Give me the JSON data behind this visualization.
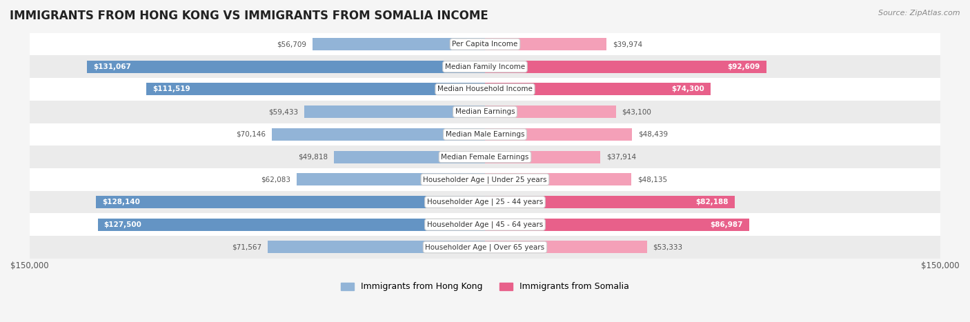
{
  "title": "IMMIGRANTS FROM HONG KONG VS IMMIGRANTS FROM SOMALIA INCOME",
  "source": "Source: ZipAtlas.com",
  "categories": [
    "Per Capita Income",
    "Median Family Income",
    "Median Household Income",
    "Median Earnings",
    "Median Male Earnings",
    "Median Female Earnings",
    "Householder Age | Under 25 years",
    "Householder Age | 25 - 44 years",
    "Householder Age | 45 - 64 years",
    "Householder Age | Over 65 years"
  ],
  "hong_kong_values": [
    56709,
    131067,
    111519,
    59433,
    70146,
    49818,
    62083,
    128140,
    127500,
    71567
  ],
  "somalia_values": [
    39974,
    92609,
    74300,
    43100,
    48439,
    37914,
    48135,
    82188,
    86987,
    53333
  ],
  "hong_kong_labels": [
    "$56,709",
    "$131,067",
    "$111,519",
    "$59,433",
    "$70,146",
    "$49,818",
    "$62,083",
    "$128,140",
    "$127,500",
    "$71,567"
  ],
  "somalia_labels": [
    "$39,974",
    "$92,609",
    "$74,300",
    "$43,100",
    "$48,439",
    "$37,914",
    "$48,135",
    "$82,188",
    "$86,987",
    "$53,333"
  ],
  "max_value": 150000,
  "hong_kong_color": "#92b4d7",
  "hong_kong_color_dark": "#6494c4",
  "somalia_color": "#f4a0b8",
  "somalia_color_dark": "#e8608a",
  "bar_height": 0.55,
  "background_color": "#f5f5f5",
  "row_bg_light": "#ffffff",
  "row_bg_dark": "#ebebeb",
  "hong_kong_threshold": 100000,
  "somalia_threshold": 70000,
  "legend_hk": "Immigrants from Hong Kong",
  "legend_som": "Immigrants from Somalia"
}
